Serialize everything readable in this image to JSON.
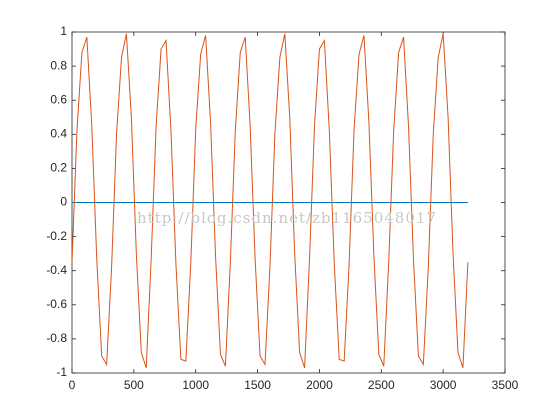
{
  "chart_data": {
    "type": "line",
    "annotation": "http://blog.csdn.net/zb1165048017",
    "xlim": [
      0,
      3500
    ],
    "xticks": [
      0,
      500,
      1000,
      1500,
      2000,
      2500,
      3000,
      3500
    ],
    "ylim": [
      -1,
      1
    ],
    "yticks": [
      -1,
      -0.8,
      -0.6,
      -0.4,
      -0.2,
      0,
      0.2,
      0.4,
      0.6,
      0.8,
      1
    ],
    "series": [
      {
        "color": "#0072bd",
        "x": [
          0,
          3200
        ],
        "values": [
          0,
          0
        ]
      },
      {
        "color": "#d95319",
        "x": [
          0,
          40,
          80,
          120,
          160,
          200,
          240,
          280,
          320,
          360,
          400,
          440,
          480,
          520,
          560,
          600,
          640,
          680,
          720,
          760,
          800,
          840,
          880,
          920,
          960,
          1000,
          1040,
          1080,
          1120,
          1160,
          1200,
          1240,
          1280,
          1320,
          1360,
          1400,
          1440,
          1480,
          1520,
          1560,
          1600,
          1640,
          1680,
          1720,
          1760,
          1800,
          1840,
          1880,
          1920,
          1960,
          2000,
          2040,
          2080,
          2120,
          2160,
          2200,
          2240,
          2280,
          2320,
          2360,
          2400,
          2440,
          2480,
          2520,
          2560,
          2600,
          2640,
          2680,
          2720,
          2760,
          2800,
          2840,
          2880,
          2920,
          2960,
          3000,
          3040,
          3080,
          3120,
          3160,
          3200
        ],
        "values": [
          -0.35,
          0.42,
          0.88,
          0.97,
          0.45,
          -0.33,
          -0.9,
          -0.95,
          -0.38,
          0.4,
          0.85,
          0.99,
          0.5,
          -0.3,
          -0.88,
          -0.97,
          -0.33,
          0.45,
          0.9,
          0.95,
          0.42,
          -0.36,
          -0.92,
          -0.93,
          -0.36,
          0.43,
          0.87,
          0.98,
          0.47,
          -0.31,
          -0.89,
          -0.96,
          -0.35,
          0.42,
          0.88,
          0.97,
          0.45,
          -0.33,
          -0.9,
          -0.95,
          -0.38,
          0.4,
          0.85,
          0.99,
          0.5,
          -0.3,
          -0.88,
          -0.97,
          -0.33,
          0.45,
          0.9,
          0.95,
          0.42,
          -0.36,
          -0.92,
          -0.93,
          -0.36,
          0.43,
          0.87,
          0.98,
          0.47,
          -0.31,
          -0.89,
          -0.96,
          -0.35,
          0.42,
          0.88,
          0.97,
          0.45,
          -0.33,
          -0.9,
          -0.95,
          -0.38,
          0.4,
          0.85,
          0.99,
          0.5,
          -0.3,
          -0.88,
          -0.97,
          -0.35
        ]
      }
    ]
  }
}
